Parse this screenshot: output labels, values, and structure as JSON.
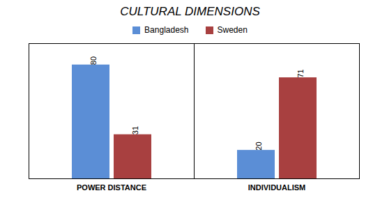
{
  "chart_data": {
    "type": "bar",
    "title": "CULTURAL DIMENSIONS",
    "categories": [
      "POWER DISTANCE",
      "INDIVIDUALISM"
    ],
    "series": [
      {
        "name": "Bangladesh",
        "color": "#5B8ED6",
        "values": [
          80,
          20
        ]
      },
      {
        "name": "Sweden",
        "color": "#A84040",
        "values": [
          31,
          71
        ]
      }
    ],
    "ylim": [
      0,
      95
    ],
    "tick_labels": "x",
    "data_labels": true,
    "grid": false,
    "legend": "top"
  }
}
